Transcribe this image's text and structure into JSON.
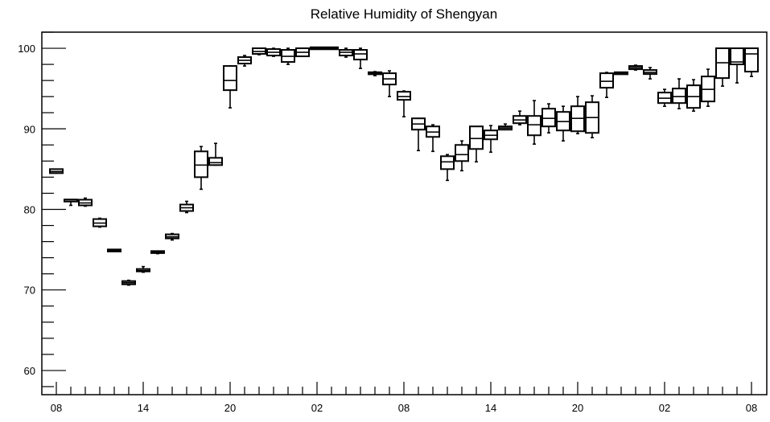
{
  "chart_data": {
    "type": "box",
    "title": "Relative Humidity of Shengyan",
    "xlabel": "",
    "ylabel": "",
    "xlim": [
      0,
      48
    ],
    "ylim": [
      57,
      102
    ],
    "grid": false,
    "legend": "none",
    "colors": {
      "box": "#000000",
      "background": "#ffffff"
    },
    "x_tick_labels": [
      {
        "x": 0,
        "label": "08"
      },
      {
        "x": 6,
        "label": "14"
      },
      {
        "x": 12,
        "label": "20"
      },
      {
        "x": 18,
        "label": "02"
      },
      {
        "x": 24,
        "label": "08"
      },
      {
        "x": 30,
        "label": "14"
      },
      {
        "x": 36,
        "label": "20"
      },
      {
        "x": 42,
        "label": "02"
      },
      {
        "x": 48,
        "label": "08"
      }
    ],
    "y_tick_labels": [
      60,
      70,
      80,
      90,
      100
    ],
    "boxes": [
      {
        "x": 0,
        "min": 84.5,
        "q1": 84.5,
        "median": 84.7,
        "q3": 85.0,
        "max": 85.0
      },
      {
        "x": 1,
        "min": 80.5,
        "q1": 81.0,
        "median": 81.0,
        "q3": 81.2,
        "max": 81.2
      },
      {
        "x": 2,
        "min": 80.4,
        "q1": 80.5,
        "median": 80.8,
        "q3": 81.2,
        "max": 81.4
      },
      {
        "x": 3,
        "min": 77.8,
        "q1": 77.9,
        "median": 78.3,
        "q3": 78.8,
        "max": 78.9
      },
      {
        "x": 4,
        "min": 74.8,
        "q1": 74.8,
        "median": 74.9,
        "q3": 75.0,
        "max": 75.0
      },
      {
        "x": 5,
        "min": 70.6,
        "q1": 70.7,
        "median": 70.9,
        "q3": 71.1,
        "max": 71.2
      },
      {
        "x": 6,
        "min": 72.2,
        "q1": 72.3,
        "median": 72.4,
        "q3": 72.6,
        "max": 72.9
      },
      {
        "x": 7,
        "min": 74.5,
        "q1": 74.6,
        "median": 74.7,
        "q3": 74.8,
        "max": 74.8
      },
      {
        "x": 8,
        "min": 76.2,
        "q1": 76.4,
        "median": 76.6,
        "q3": 76.9,
        "max": 77.0
      },
      {
        "x": 9,
        "min": 79.6,
        "q1": 79.8,
        "median": 80.2,
        "q3": 80.6,
        "max": 81.0
      },
      {
        "x": 10,
        "min": 82.5,
        "q1": 84.0,
        "median": 85.5,
        "q3": 87.2,
        "max": 87.8
      },
      {
        "x": 11,
        "min": 85.5,
        "q1": 85.5,
        "median": 85.8,
        "q3": 86.4,
        "max": 88.2
      },
      {
        "x": 12,
        "min": 92.6,
        "q1": 94.8,
        "median": 96.0,
        "q3": 97.8,
        "max": 97.8
      },
      {
        "x": 13,
        "min": 97.8,
        "q1": 98.1,
        "median": 98.5,
        "q3": 98.9,
        "max": 99.1
      },
      {
        "x": 14,
        "min": 99.2,
        "q1": 99.3,
        "median": 99.6,
        "q3": 100.0,
        "max": 100.0
      },
      {
        "x": 15,
        "min": 99.0,
        "q1": 99.1,
        "median": 99.5,
        "q3": 99.9,
        "max": 100.0
      },
      {
        "x": 16,
        "min": 98.0,
        "q1": 98.3,
        "median": 99.0,
        "q3": 99.8,
        "max": 100.0
      },
      {
        "x": 17,
        "min": 99.0,
        "q1": 99.0,
        "median": 99.5,
        "q3": 100.0,
        "max": 100.0
      },
      {
        "x": 18,
        "min": 100.0,
        "q1": 100.0,
        "median": 100.0,
        "q3": 100.0,
        "max": 100.0
      },
      {
        "x": 19,
        "min": 100.0,
        "q1": 100.0,
        "median": 100.0,
        "q3": 100.0,
        "max": 100.0
      },
      {
        "x": 20,
        "min": 98.9,
        "q1": 99.1,
        "median": 99.5,
        "q3": 99.8,
        "max": 100.0
      },
      {
        "x": 21,
        "min": 97.5,
        "q1": 98.6,
        "median": 99.3,
        "q3": 99.8,
        "max": 100.0
      },
      {
        "x": 22,
        "min": 96.6,
        "q1": 96.8,
        "median": 96.9,
        "q3": 97.0,
        "max": 97.1
      },
      {
        "x": 23,
        "min": 94.0,
        "q1": 95.5,
        "median": 96.2,
        "q3": 96.9,
        "max": 97.2
      },
      {
        "x": 24,
        "min": 91.5,
        "q1": 93.6,
        "median": 94.0,
        "q3": 94.6,
        "max": 94.7
      },
      {
        "x": 25,
        "min": 87.3,
        "q1": 89.9,
        "median": 90.6,
        "q3": 91.3,
        "max": 91.3
      },
      {
        "x": 26,
        "min": 87.2,
        "q1": 89.0,
        "median": 89.6,
        "q3": 90.3,
        "max": 90.5
      },
      {
        "x": 27,
        "min": 83.6,
        "q1": 85.0,
        "median": 85.9,
        "q3": 86.6,
        "max": 86.8
      },
      {
        "x": 28,
        "min": 84.8,
        "q1": 86.0,
        "median": 86.8,
        "q3": 88.0,
        "max": 88.5
      },
      {
        "x": 29,
        "min": 85.9,
        "q1": 87.5,
        "median": 88.8,
        "q3": 90.3,
        "max": 90.3
      },
      {
        "x": 30,
        "min": 87.1,
        "q1": 88.7,
        "median": 89.2,
        "q3": 89.8,
        "max": 90.4
      },
      {
        "x": 31,
        "min": 89.9,
        "q1": 89.9,
        "median": 90.1,
        "q3": 90.3,
        "max": 90.6
      },
      {
        "x": 32,
        "min": 90.5,
        "q1": 90.7,
        "median": 91.1,
        "q3": 91.6,
        "max": 92.2
      },
      {
        "x": 33,
        "min": 88.1,
        "q1": 89.2,
        "median": 90.5,
        "q3": 91.6,
        "max": 93.5
      },
      {
        "x": 34,
        "min": 89.5,
        "q1": 90.3,
        "median": 91.3,
        "q3": 92.5,
        "max": 93.1
      },
      {
        "x": 35,
        "min": 88.5,
        "q1": 89.8,
        "median": 90.9,
        "q3": 92.1,
        "max": 92.8
      },
      {
        "x": 36,
        "min": 89.4,
        "q1": 89.7,
        "median": 91.3,
        "q3": 92.8,
        "max": 94.0
      },
      {
        "x": 37,
        "min": 88.9,
        "q1": 89.5,
        "median": 91.4,
        "q3": 93.3,
        "max": 94.1
      },
      {
        "x": 38,
        "min": 93.9,
        "q1": 95.1,
        "median": 95.9,
        "q3": 96.9,
        "max": 97.0
      },
      {
        "x": 39,
        "min": 96.8,
        "q1": 96.8,
        "median": 96.9,
        "q3": 97.0,
        "max": 97.0
      },
      {
        "x": 40,
        "min": 97.3,
        "q1": 97.4,
        "median": 97.6,
        "q3": 97.8,
        "max": 97.9
      },
      {
        "x": 41,
        "min": 96.2,
        "q1": 96.8,
        "median": 97.0,
        "q3": 97.3,
        "max": 97.6
      },
      {
        "x": 42,
        "min": 92.8,
        "q1": 93.2,
        "median": 93.8,
        "q3": 94.5,
        "max": 94.9
      },
      {
        "x": 43,
        "min": 92.5,
        "q1": 93.2,
        "median": 94.0,
        "q3": 95.0,
        "max": 96.2
      },
      {
        "x": 44,
        "min": 92.2,
        "q1": 92.6,
        "median": 94.0,
        "q3": 95.4,
        "max": 96.1
      },
      {
        "x": 45,
        "min": 92.8,
        "q1": 93.4,
        "median": 94.9,
        "q3": 96.5,
        "max": 97.4
      },
      {
        "x": 46,
        "min": 95.3,
        "q1": 96.3,
        "median": 98.2,
        "q3": 100.0,
        "max": 100.0
      },
      {
        "x": 47,
        "min": 95.7,
        "q1": 98.0,
        "median": 98.3,
        "q3": 100.0,
        "max": 100.0
      },
      {
        "x": 48,
        "min": 96.5,
        "q1": 97.1,
        "median": 99.3,
        "q3": 100.0,
        "max": 100.0
      }
    ]
  }
}
